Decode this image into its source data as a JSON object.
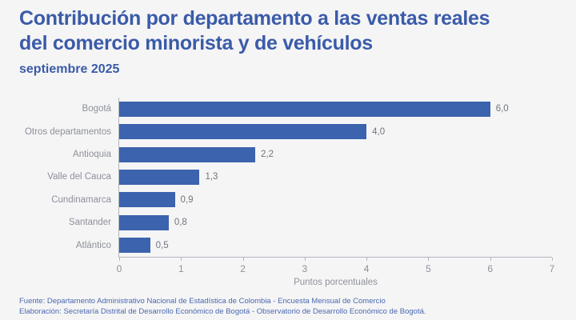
{
  "header": {
    "title_line1": "Contribución por departamento a las ventas reales",
    "title_line2": "del comercio minorista y de vehículos",
    "subtitle": "septiembre 2025"
  },
  "chart_data": {
    "type": "bar",
    "orientation": "horizontal",
    "title": "Contribución por departamento a las ventas reales del comercio minorista y de vehículos — septiembre 2025",
    "categories": [
      "Bogotá",
      "Otros departamentos",
      "Antioquia",
      "Valle del Cauca",
      "Cundinamarca",
      "Santander",
      "Atlántico"
    ],
    "values": [
      6.0,
      4.0,
      2.2,
      1.3,
      0.9,
      0.8,
      0.5
    ],
    "value_labels": [
      "6,0",
      "4,0",
      "2,2",
      "1,3",
      "0,9",
      "0,8",
      "0,5"
    ],
    "xlabel": "Puntos porcentuales",
    "ylabel": "",
    "xlim": [
      0,
      7
    ],
    "xticks": [
      0,
      1,
      2,
      3,
      4,
      5,
      6,
      7
    ],
    "xtick_labels": [
      "0",
      "1",
      "2",
      "3",
      "4",
      "5",
      "6",
      "7"
    ],
    "grid": false,
    "legend": false,
    "bar_color": "#3c63ad"
  },
  "footer": {
    "line1": "Fuente: Departamento Administrativo Nacional de Estadística de Colombia - Encuesta Mensual de Comercio",
    "line2": "Elaboración: Secretaría Distrital de Desarrollo Económico de Bogotá - Observatorio de Desarrollo Económico de Bogotá."
  },
  "colors": {
    "background": "#f5f5f6",
    "title_blue": "#3a5ba8",
    "bar_blue": "#3c63ad",
    "axis_gray": "#b2b5bd",
    "label_gray": "#8d9099",
    "footer_blue": "#4a68ae"
  }
}
